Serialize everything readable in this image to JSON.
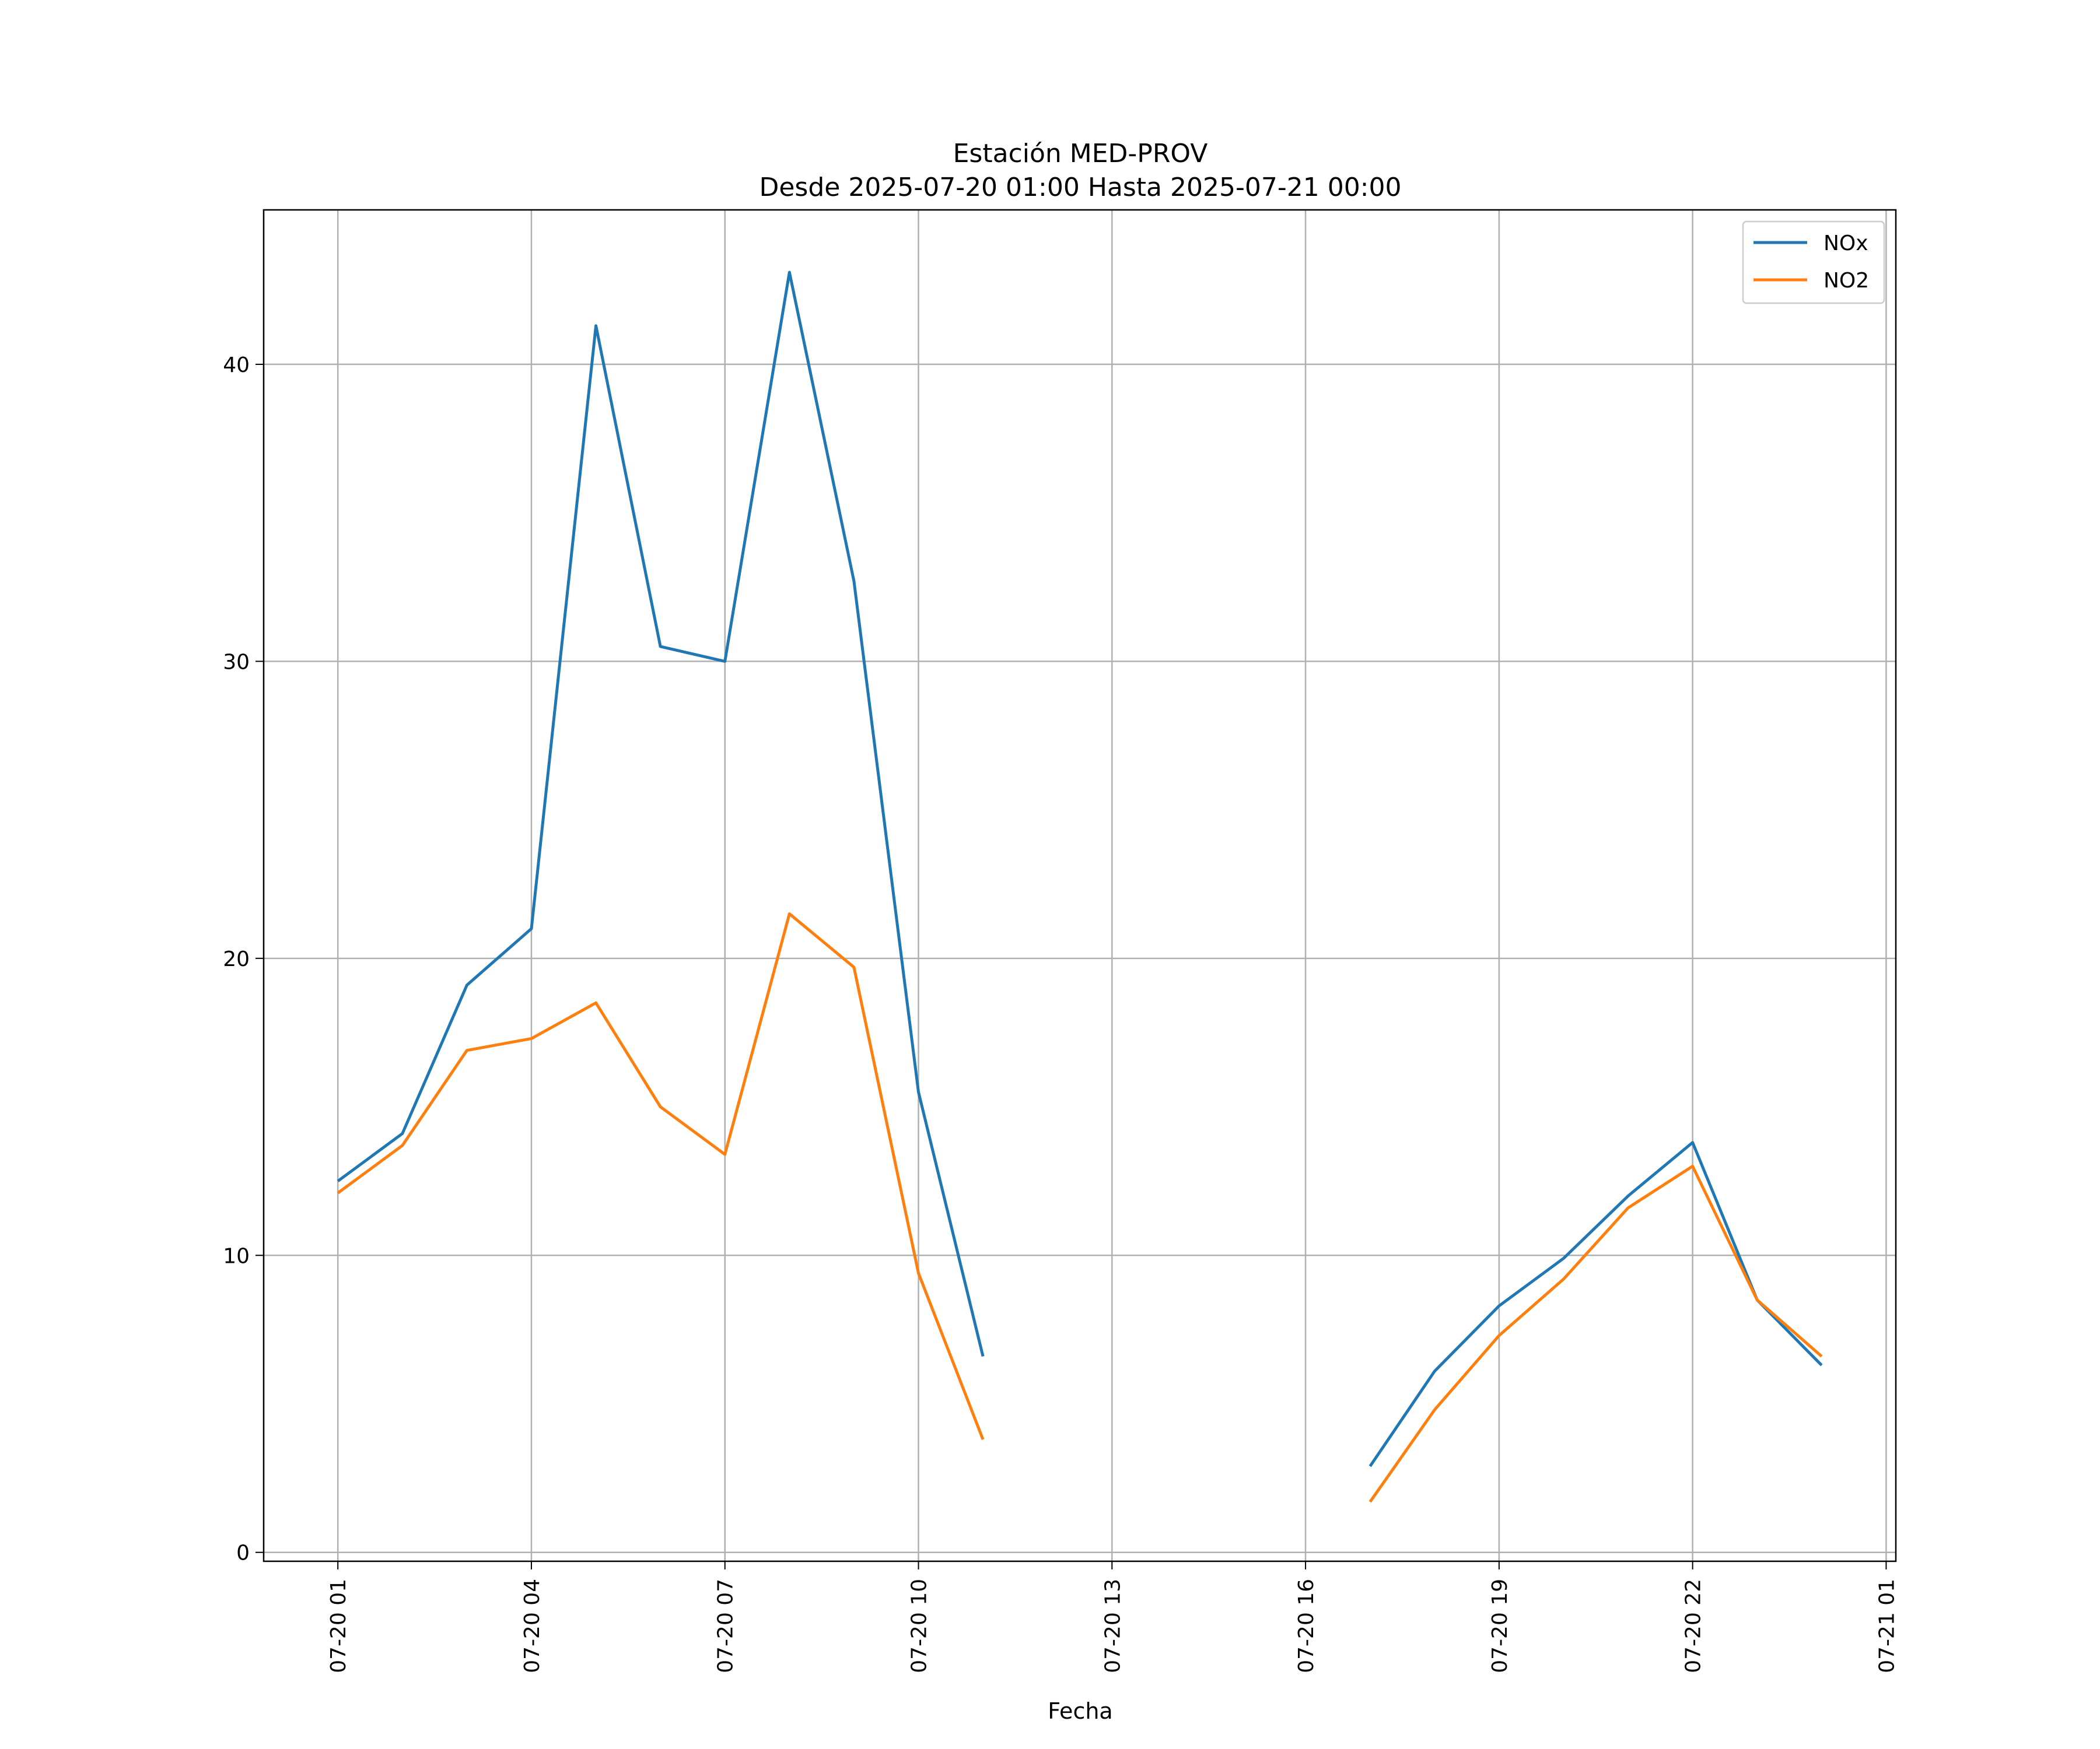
{
  "chart_data": {
    "type": "line",
    "title": "Estación MED-PROV",
    "subtitle": "Desde 2025-07-20 01:00 Hasta 2025-07-21 00:00",
    "xlabel": "Fecha",
    "ylabel": "",
    "x": [
      "2025-07-20 01:00",
      "2025-07-20 02:00",
      "2025-07-20 03:00",
      "2025-07-20 04:00",
      "2025-07-20 05:00",
      "2025-07-20 06:00",
      "2025-07-20 07:00",
      "2025-07-20 08:00",
      "2025-07-20 09:00",
      "2025-07-20 10:00",
      "2025-07-20 11:00",
      "2025-07-20 12:00",
      "2025-07-20 13:00",
      "2025-07-20 14:00",
      "2025-07-20 15:00",
      "2025-07-20 16:00",
      "2025-07-20 17:00",
      "2025-07-20 18:00",
      "2025-07-20 19:00",
      "2025-07-20 20:00",
      "2025-07-20 21:00",
      "2025-07-20 22:00",
      "2025-07-20 23:00",
      "2025-07-21 00:00"
    ],
    "series": [
      {
        "name": "NOx",
        "color": "#1f77b4",
        "values": [
          12.5,
          14.1,
          19.1,
          21.0,
          41.3,
          30.5,
          30.0,
          43.1,
          32.7,
          15.5,
          6.6,
          null,
          null,
          null,
          null,
          null,
          2.9,
          6.1,
          8.3,
          9.9,
          12.0,
          13.8,
          8.5,
          6.3
        ]
      },
      {
        "name": "NO2",
        "color": "#ff7f0e",
        "values": [
          12.1,
          13.7,
          16.9,
          17.3,
          18.5,
          15.0,
          13.4,
          21.5,
          19.7,
          9.4,
          3.8,
          null,
          null,
          null,
          null,
          null,
          1.7,
          4.8,
          7.3,
          9.2,
          11.6,
          13.0,
          8.5,
          6.6
        ]
      }
    ],
    "xticks": [
      "07-20 01",
      "07-20 04",
      "07-20 07",
      "07-20 10",
      "07-20 13",
      "07-20 16",
      "07-20 19",
      "07-20 22",
      "07-21 01"
    ],
    "yticks": [
      "0",
      "10",
      "20",
      "30",
      "40"
    ],
    "ylim": [
      -0.3,
      45.2
    ],
    "xlim": [
      "2025-07-19 23:51",
      "2025-07-21 01:09"
    ],
    "grid": true,
    "legend": "top-right"
  }
}
